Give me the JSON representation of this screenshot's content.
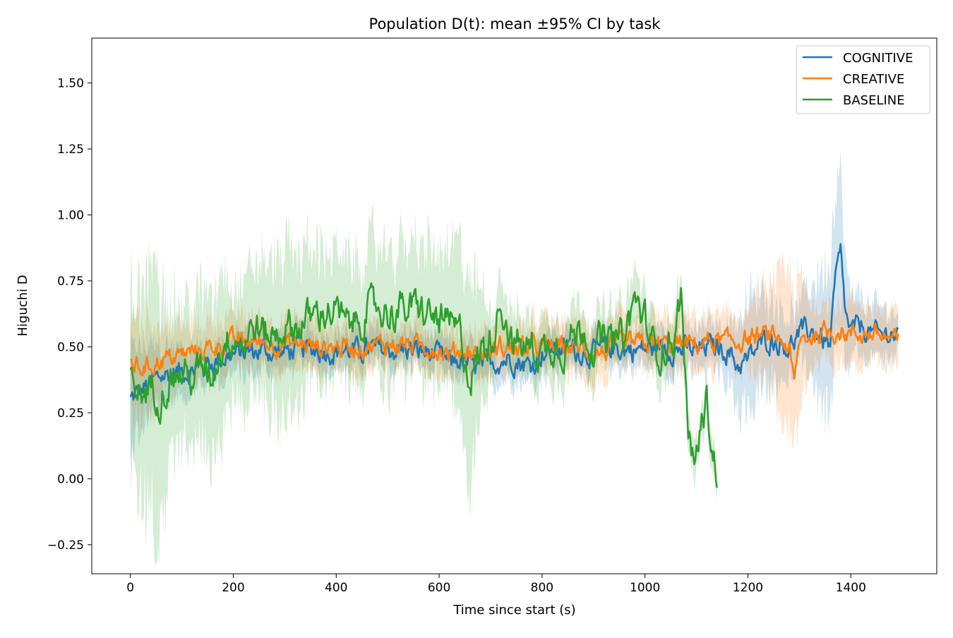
{
  "chart_data": {
    "type": "line",
    "title": "Population D(t): mean ±95% CI by task",
    "xlabel": "Time since start (s)",
    "ylabel": "Higuchi D",
    "xlim": [
      -75,
      1567
    ],
    "ylim": [
      -0.36,
      1.67
    ],
    "x_ticks": [
      0,
      200,
      400,
      600,
      800,
      1000,
      1200,
      1400
    ],
    "y_ticks": [
      -0.25,
      0.0,
      0.25,
      0.5,
      0.75,
      1.0,
      1.25,
      1.5
    ],
    "y_tick_labels": [
      "−0.25",
      "0.00",
      "0.25",
      "0.50",
      "0.75",
      "1.00",
      "1.25",
      "1.50"
    ],
    "grid": false,
    "legend_position": "top-right",
    "series": [
      {
        "name": "COGNITIVE",
        "color": "#1f77b4",
        "x_range": [
          0,
          1493
        ],
        "mean_points": [
          [
            0,
            0.3
          ],
          [
            20,
            0.33
          ],
          [
            40,
            0.36
          ],
          [
            60,
            0.39
          ],
          [
            80,
            0.4
          ],
          [
            100,
            0.41
          ],
          [
            120,
            0.41
          ],
          [
            140,
            0.43
          ],
          [
            160,
            0.44
          ],
          [
            180,
            0.46
          ],
          [
            200,
            0.47
          ],
          [
            220,
            0.48
          ],
          [
            240,
            0.48
          ],
          [
            260,
            0.49
          ],
          [
            280,
            0.48
          ],
          [
            300,
            0.48
          ],
          [
            320,
            0.49
          ],
          [
            340,
            0.49
          ],
          [
            360,
            0.49
          ],
          [
            380,
            0.49
          ],
          [
            400,
            0.48
          ],
          [
            420,
            0.49
          ],
          [
            440,
            0.48
          ],
          [
            460,
            0.49
          ],
          [
            480,
            0.49
          ],
          [
            500,
            0.49
          ],
          [
            520,
            0.49
          ],
          [
            540,
            0.49
          ],
          [
            560,
            0.48
          ],
          [
            580,
            0.48
          ],
          [
            600,
            0.46
          ],
          [
            620,
            0.44
          ],
          [
            640,
            0.45
          ],
          [
            660,
            0.43
          ],
          [
            680,
            0.42
          ],
          [
            700,
            0.44
          ],
          [
            720,
            0.45
          ],
          [
            740,
            0.46
          ],
          [
            760,
            0.44
          ],
          [
            780,
            0.43
          ],
          [
            800,
            0.48
          ],
          [
            820,
            0.49
          ],
          [
            840,
            0.49
          ],
          [
            860,
            0.49
          ],
          [
            880,
            0.48
          ],
          [
            900,
            0.48
          ],
          [
            920,
            0.49
          ],
          [
            940,
            0.5
          ],
          [
            960,
            0.49
          ],
          [
            980,
            0.49
          ],
          [
            1000,
            0.49
          ],
          [
            1020,
            0.5
          ],
          [
            1040,
            0.5
          ],
          [
            1060,
            0.49
          ],
          [
            1080,
            0.49
          ],
          [
            1100,
            0.48
          ],
          [
            1120,
            0.5
          ],
          [
            1140,
            0.5
          ],
          [
            1160,
            0.49
          ],
          [
            1180,
            0.43
          ],
          [
            1200,
            0.45
          ],
          [
            1220,
            0.5
          ],
          [
            1240,
            0.53
          ],
          [
            1260,
            0.52
          ],
          [
            1280,
            0.5
          ],
          [
            1300,
            0.55
          ],
          [
            1320,
            0.56
          ],
          [
            1340,
            0.54
          ],
          [
            1360,
            0.5
          ],
          [
            1370,
            0.75
          ],
          [
            1380,
            0.85
          ],
          [
            1390,
            0.62
          ],
          [
            1400,
            0.55
          ],
          [
            1420,
            0.58
          ],
          [
            1440,
            0.55
          ],
          [
            1460,
            0.54
          ],
          [
            1480,
            0.56
          ],
          [
            1493,
            0.52
          ]
        ],
        "ci_half_width_points": [
          [
            0,
            0.18
          ],
          [
            100,
            0.08
          ],
          [
            600,
            0.06
          ],
          [
            700,
            0.08
          ],
          [
            900,
            0.06
          ],
          [
            1150,
            0.09
          ],
          [
            1200,
            0.22
          ],
          [
            1300,
            0.1
          ],
          [
            1370,
            0.35
          ],
          [
            1400,
            0.12
          ],
          [
            1493,
            0.08
          ]
        ]
      },
      {
        "name": "CREATIVE",
        "color": "#ff7f0e",
        "x_range": [
          0,
          1493
        ],
        "mean_points": [
          [
            0,
            0.44
          ],
          [
            20,
            0.42
          ],
          [
            40,
            0.43
          ],
          [
            60,
            0.45
          ],
          [
            80,
            0.46
          ],
          [
            100,
            0.47
          ],
          [
            120,
            0.48
          ],
          [
            140,
            0.49
          ],
          [
            160,
            0.5
          ],
          [
            180,
            0.51
          ],
          [
            200,
            0.52
          ],
          [
            220,
            0.52
          ],
          [
            240,
            0.52
          ],
          [
            260,
            0.52
          ],
          [
            280,
            0.51
          ],
          [
            300,
            0.51
          ],
          [
            320,
            0.51
          ],
          [
            340,
            0.51
          ],
          [
            360,
            0.5
          ],
          [
            380,
            0.5
          ],
          [
            400,
            0.5
          ],
          [
            420,
            0.5
          ],
          [
            440,
            0.5
          ],
          [
            460,
            0.5
          ],
          [
            480,
            0.51
          ],
          [
            500,
            0.51
          ],
          [
            520,
            0.51
          ],
          [
            540,
            0.51
          ],
          [
            560,
            0.5
          ],
          [
            580,
            0.5
          ],
          [
            600,
            0.49
          ],
          [
            620,
            0.47
          ],
          [
            640,
            0.49
          ],
          [
            660,
            0.48
          ],
          [
            680,
            0.47
          ],
          [
            700,
            0.48
          ],
          [
            720,
            0.5
          ],
          [
            740,
            0.49
          ],
          [
            760,
            0.49
          ],
          [
            780,
            0.5
          ],
          [
            800,
            0.5
          ],
          [
            820,
            0.5
          ],
          [
            840,
            0.5
          ],
          [
            860,
            0.5
          ],
          [
            880,
            0.49
          ],
          [
            900,
            0.48
          ],
          [
            920,
            0.48
          ],
          [
            940,
            0.5
          ],
          [
            960,
            0.51
          ],
          [
            980,
            0.51
          ],
          [
            1000,
            0.51
          ],
          [
            1020,
            0.51
          ],
          [
            1040,
            0.51
          ],
          [
            1060,
            0.51
          ],
          [
            1080,
            0.51
          ],
          [
            1100,
            0.51
          ],
          [
            1120,
            0.52
          ],
          [
            1140,
            0.52
          ],
          [
            1160,
            0.52
          ],
          [
            1180,
            0.52
          ],
          [
            1200,
            0.53
          ],
          [
            1220,
            0.54
          ],
          [
            1240,
            0.54
          ],
          [
            1260,
            0.53
          ],
          [
            1280,
            0.5
          ],
          [
            1290,
            0.35
          ],
          [
            1300,
            0.52
          ],
          [
            1320,
            0.54
          ],
          [
            1340,
            0.55
          ],
          [
            1360,
            0.56
          ],
          [
            1380,
            0.56
          ],
          [
            1400,
            0.55
          ],
          [
            1420,
            0.55
          ],
          [
            1440,
            0.55
          ],
          [
            1460,
            0.54
          ],
          [
            1480,
            0.53
          ],
          [
            1493,
            0.52
          ]
        ],
        "ci_half_width_points": [
          [
            0,
            0.2
          ],
          [
            100,
            0.1
          ],
          [
            600,
            0.08
          ],
          [
            900,
            0.1
          ],
          [
            1200,
            0.1
          ],
          [
            1290,
            0.3
          ],
          [
            1320,
            0.12
          ],
          [
            1493,
            0.1
          ]
        ]
      },
      {
        "name": "BASELINE",
        "color": "#2ca02c",
        "x_range": [
          0,
          1140
        ],
        "mean_points": [
          [
            0,
            0.38
          ],
          [
            20,
            0.32
          ],
          [
            40,
            0.35
          ],
          [
            60,
            0.32
          ],
          [
            80,
            0.38
          ],
          [
            100,
            0.4
          ],
          [
            120,
            0.38
          ],
          [
            140,
            0.42
          ],
          [
            160,
            0.4
          ],
          [
            180,
            0.52
          ],
          [
            200,
            0.55
          ],
          [
            220,
            0.52
          ],
          [
            240,
            0.58
          ],
          [
            260,
            0.55
          ],
          [
            280,
            0.54
          ],
          [
            300,
            0.58
          ],
          [
            320,
            0.57
          ],
          [
            340,
            0.6
          ],
          [
            360,
            0.62
          ],
          [
            380,
            0.64
          ],
          [
            400,
            0.63
          ],
          [
            420,
            0.58
          ],
          [
            440,
            0.6
          ],
          [
            460,
            0.63
          ],
          [
            480,
            0.65
          ],
          [
            500,
            0.63
          ],
          [
            520,
            0.64
          ],
          [
            540,
            0.64
          ],
          [
            560,
            0.64
          ],
          [
            580,
            0.62
          ],
          [
            600,
            0.6
          ],
          [
            620,
            0.58
          ],
          [
            640,
            0.55
          ],
          [
            660,
            0.38
          ],
          [
            680,
            0.48
          ],
          [
            700,
            0.52
          ],
          [
            720,
            0.68
          ],
          [
            740,
            0.52
          ],
          [
            760,
            0.5
          ],
          [
            780,
            0.5
          ],
          [
            800,
            0.48
          ],
          [
            820,
            0.52
          ],
          [
            840,
            0.5
          ],
          [
            860,
            0.54
          ],
          [
            880,
            0.58
          ],
          [
            900,
            0.5
          ],
          [
            920,
            0.52
          ],
          [
            940,
            0.52
          ],
          [
            960,
            0.54
          ],
          [
            980,
            0.68
          ],
          [
            1000,
            0.6
          ],
          [
            1020,
            0.48
          ],
          [
            1040,
            0.5
          ],
          [
            1060,
            0.55
          ],
          [
            1070,
            0.72
          ],
          [
            1080,
            0.3
          ],
          [
            1090,
            0.06
          ],
          [
            1100,
            0.1
          ],
          [
            1110,
            0.2
          ],
          [
            1120,
            0.3
          ],
          [
            1130,
            0.12
          ],
          [
            1140,
            0.03
          ]
        ],
        "ci_half_width_points": [
          [
            0,
            0.35
          ],
          [
            50,
            0.45
          ],
          [
            100,
            0.25
          ],
          [
            180,
            0.3
          ],
          [
            200,
            0.2
          ],
          [
            300,
            0.3
          ],
          [
            400,
            0.22
          ],
          [
            600,
            0.25
          ],
          [
            660,
            0.35
          ],
          [
            700,
            0.12
          ],
          [
            1000,
            0.1
          ],
          [
            1080,
            0.08
          ],
          [
            1140,
            0.06
          ]
        ]
      }
    ]
  }
}
